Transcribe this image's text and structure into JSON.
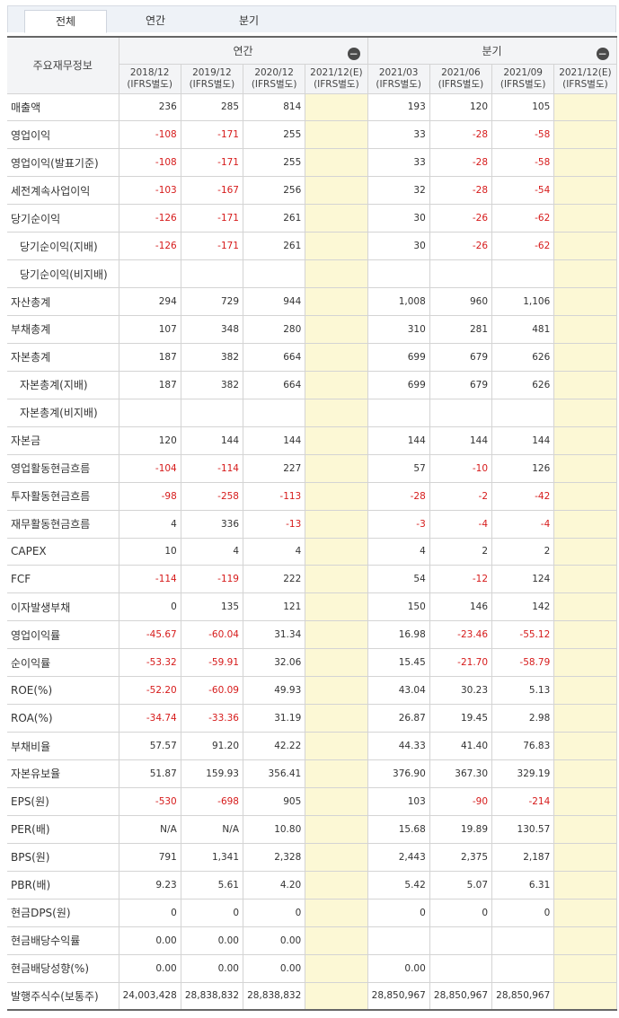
{
  "tabs": [
    "전체",
    "연간",
    "분기"
  ],
  "header": {
    "corner": "주요재무정보",
    "group_annual": "연간",
    "group_quarter": "분기",
    "collapse_icon": "−",
    "periods": [
      {
        "period": "2018/12",
        "basis": "(IFRS별도)"
      },
      {
        "period": "2019/12",
        "basis": "(IFRS별도)"
      },
      {
        "period": "2020/12",
        "basis": "(IFRS별도)"
      },
      {
        "period": "2021/12(E)",
        "basis": "(IFRS별도)"
      },
      {
        "period": "2021/03",
        "basis": "(IFRS별도)"
      },
      {
        "period": "2021/06",
        "basis": "(IFRS별도)"
      },
      {
        "period": "2021/09",
        "basis": "(IFRS별도)"
      },
      {
        "period": "2021/12(E)",
        "basis": "(IFRS별도)"
      }
    ]
  },
  "rows": [
    {
      "label": "매출액",
      "sub": false,
      "values": [
        "236",
        "285",
        "814",
        "",
        "193",
        "120",
        "105",
        ""
      ]
    },
    {
      "label": "영업이익",
      "sub": false,
      "values": [
        "-108",
        "-171",
        "255",
        "",
        "33",
        "-28",
        "-58",
        ""
      ]
    },
    {
      "label": "영업이익(발표기준)",
      "sub": false,
      "values": [
        "-108",
        "-171",
        "255",
        "",
        "33",
        "-28",
        "-58",
        ""
      ]
    },
    {
      "label": "세전계속사업이익",
      "sub": false,
      "values": [
        "-103",
        "-167",
        "256",
        "",
        "32",
        "-28",
        "-54",
        ""
      ]
    },
    {
      "label": "당기순이익",
      "sub": false,
      "values": [
        "-126",
        "-171",
        "261",
        "",
        "30",
        "-26",
        "-62",
        ""
      ]
    },
    {
      "label": "당기순이익(지배)",
      "sub": true,
      "values": [
        "-126",
        "-171",
        "261",
        "",
        "30",
        "-26",
        "-62",
        ""
      ]
    },
    {
      "label": "당기순이익(비지배)",
      "sub": true,
      "values": [
        "",
        "",
        "",
        "",
        "",
        "",
        "",
        ""
      ]
    },
    {
      "label": "자산총계",
      "sub": false,
      "values": [
        "294",
        "729",
        "944",
        "",
        "1,008",
        "960",
        "1,106",
        ""
      ]
    },
    {
      "label": "부채총계",
      "sub": false,
      "values": [
        "107",
        "348",
        "280",
        "",
        "310",
        "281",
        "481",
        ""
      ]
    },
    {
      "label": "자본총계",
      "sub": false,
      "values": [
        "187",
        "382",
        "664",
        "",
        "699",
        "679",
        "626",
        ""
      ]
    },
    {
      "label": "자본총계(지배)",
      "sub": true,
      "values": [
        "187",
        "382",
        "664",
        "",
        "699",
        "679",
        "626",
        ""
      ]
    },
    {
      "label": "자본총계(비지배)",
      "sub": true,
      "values": [
        "",
        "",
        "",
        "",
        "",
        "",
        "",
        ""
      ]
    },
    {
      "label": "자본금",
      "sub": false,
      "values": [
        "120",
        "144",
        "144",
        "",
        "144",
        "144",
        "144",
        ""
      ]
    },
    {
      "label": "영업활동현금흐름",
      "sub": false,
      "values": [
        "-104",
        "-114",
        "227",
        "",
        "57",
        "-10",
        "126",
        ""
      ]
    },
    {
      "label": "투자활동현금흐름",
      "sub": false,
      "values": [
        "-98",
        "-258",
        "-113",
        "",
        "-28",
        "-2",
        "-42",
        ""
      ]
    },
    {
      "label": "재무활동현금흐름",
      "sub": false,
      "values": [
        "4",
        "336",
        "-13",
        "",
        "-3",
        "-4",
        "-4",
        ""
      ]
    },
    {
      "label": "CAPEX",
      "sub": false,
      "values": [
        "10",
        "4",
        "4",
        "",
        "4",
        "2",
        "2",
        ""
      ]
    },
    {
      "label": "FCF",
      "sub": false,
      "values": [
        "-114",
        "-119",
        "222",
        "",
        "54",
        "-12",
        "124",
        ""
      ]
    },
    {
      "label": "이자발생부채",
      "sub": false,
      "values": [
        "0",
        "135",
        "121",
        "",
        "150",
        "146",
        "142",
        ""
      ]
    },
    {
      "label": "영업이익률",
      "sub": false,
      "values": [
        "-45.67",
        "-60.04",
        "31.34",
        "",
        "16.98",
        "-23.46",
        "-55.12",
        ""
      ]
    },
    {
      "label": "순이익률",
      "sub": false,
      "values": [
        "-53.32",
        "-59.91",
        "32.06",
        "",
        "15.45",
        "-21.70",
        "-58.79",
        ""
      ]
    },
    {
      "label": "ROE(%)",
      "sub": false,
      "values": [
        "-52.20",
        "-60.09",
        "49.93",
        "",
        "43.04",
        "30.23",
        "5.13",
        ""
      ]
    },
    {
      "label": "ROA(%)",
      "sub": false,
      "values": [
        "-34.74",
        "-33.36",
        "31.19",
        "",
        "26.87",
        "19.45",
        "2.98",
        ""
      ]
    },
    {
      "label": "부채비율",
      "sub": false,
      "values": [
        "57.57",
        "91.20",
        "42.22",
        "",
        "44.33",
        "41.40",
        "76.83",
        ""
      ]
    },
    {
      "label": "자본유보율",
      "sub": false,
      "values": [
        "51.87",
        "159.93",
        "356.41",
        "",
        "376.90",
        "367.30",
        "329.19",
        ""
      ]
    },
    {
      "label": "EPS(원)",
      "sub": false,
      "values": [
        "-530",
        "-698",
        "905",
        "",
        "103",
        "-90",
        "-214",
        ""
      ]
    },
    {
      "label": "PER(배)",
      "sub": false,
      "values": [
        "N/A",
        "N/A",
        "10.80",
        "",
        "15.68",
        "19.89",
        "130.57",
        ""
      ]
    },
    {
      "label": "BPS(원)",
      "sub": false,
      "values": [
        "791",
        "1,341",
        "2,328",
        "",
        "2,443",
        "2,375",
        "2,187",
        ""
      ]
    },
    {
      "label": "PBR(배)",
      "sub": false,
      "values": [
        "9.23",
        "5.61",
        "4.20",
        "",
        "5.42",
        "5.07",
        "6.31",
        ""
      ]
    },
    {
      "label": "현금DPS(원)",
      "sub": false,
      "values": [
        "0",
        "0",
        "0",
        "",
        "0",
        "0",
        "0",
        ""
      ]
    },
    {
      "label": "현금배당수익률",
      "sub": false,
      "values": [
        "0.00",
        "0.00",
        "0.00",
        "",
        "",
        "",
        "",
        ""
      ]
    },
    {
      "label": "현금배당성향(%)",
      "sub": false,
      "values": [
        "0.00",
        "0.00",
        "0.00",
        "",
        "0.00",
        "",
        "",
        ""
      ]
    },
    {
      "label": "발행주식수(보통주)",
      "sub": false,
      "values": [
        "24,003,428",
        "28,838,832",
        "28,838,832",
        "",
        "28,850,967",
        "28,850,967",
        "28,850,967",
        ""
      ]
    }
  ],
  "colors": {
    "negative": "#d61b1b",
    "estimate_bg": "#fcf8d5",
    "header_bg": "#f3f4f6"
  }
}
